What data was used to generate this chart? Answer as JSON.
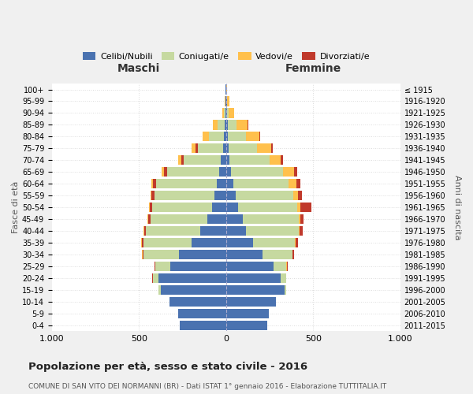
{
  "age_groups": [
    "100+",
    "95-99",
    "90-94",
    "85-89",
    "80-84",
    "75-79",
    "70-74",
    "65-69",
    "60-64",
    "55-59",
    "50-54",
    "45-49",
    "40-44",
    "35-39",
    "30-34",
    "25-29",
    "20-24",
    "15-19",
    "10-14",
    "5-9",
    "0-4"
  ],
  "birth_years": [
    "≤ 1915",
    "1916-1920",
    "1921-1925",
    "1926-1930",
    "1931-1935",
    "1936-1940",
    "1941-1945",
    "1946-1950",
    "1951-1955",
    "1956-1960",
    "1961-1965",
    "1966-1970",
    "1971-1975",
    "1976-1980",
    "1981-1985",
    "1986-1990",
    "1991-1995",
    "1996-2000",
    "2001-2005",
    "2006-2010",
    "2011-2015"
  ],
  "colors": {
    "celibi": "#4a72b0",
    "coniugati": "#c6d9a0",
    "vedovi": "#ffc04c",
    "divorziati": "#c0392b"
  },
  "maschi": {
    "celibi": [
      2,
      3,
      4,
      8,
      12,
      18,
      30,
      40,
      55,
      65,
      80,
      110,
      150,
      200,
      270,
      320,
      390,
      375,
      325,
      275,
      265
    ],
    "coniugati": [
      0,
      2,
      8,
      40,
      85,
      145,
      215,
      300,
      345,
      345,
      345,
      325,
      310,
      275,
      205,
      85,
      32,
      12,
      0,
      0,
      0
    ],
    "vedovi": [
      0,
      3,
      12,
      25,
      35,
      22,
      18,
      12,
      10,
      6,
      4,
      3,
      3,
      2,
      2,
      2,
      0,
      0,
      0,
      0,
      0
    ],
    "divorziati": [
      0,
      0,
      0,
      3,
      4,
      15,
      12,
      18,
      18,
      18,
      12,
      12,
      12,
      10,
      6,
      4,
      2,
      0,
      0,
      0,
      0
    ]
  },
  "femmine": {
    "celibi": [
      2,
      3,
      4,
      8,
      12,
      14,
      20,
      28,
      40,
      55,
      70,
      95,
      115,
      155,
      210,
      270,
      315,
      335,
      285,
      245,
      235
    ],
    "coniugati": [
      0,
      2,
      12,
      50,
      100,
      165,
      230,
      300,
      320,
      330,
      340,
      320,
      300,
      240,
      170,
      75,
      28,
      10,
      0,
      0,
      0
    ],
    "vedovi": [
      4,
      12,
      28,
      65,
      80,
      80,
      65,
      60,
      45,
      28,
      18,
      10,
      6,
      4,
      3,
      3,
      0,
      0,
      0,
      0,
      0
    ],
    "divorziati": [
      0,
      0,
      0,
      3,
      4,
      10,
      12,
      18,
      20,
      20,
      60,
      20,
      18,
      12,
      6,
      4,
      2,
      0,
      0,
      0,
      0
    ]
  },
  "title": "Popolazione per età, sesso e stato civile - 2016",
  "subtitle": "COMUNE DI SAN VITO DEI NORMANNI (BR) - Dati ISTAT 1° gennaio 2016 - Elaborazione TUTTITALIA.IT",
  "xlabel_left": "Maschi",
  "xlabel_right": "Femmine",
  "ylabel_left": "Fasce di età",
  "ylabel_right": "Anni di nascita",
  "xlim": 1000,
  "legend_labels": [
    "Celibi/Nubili",
    "Coniugati/e",
    "Vedovi/e",
    "Divorziati/e"
  ],
  "background_color": "#f0f0f0",
  "plot_background": "#ffffff"
}
